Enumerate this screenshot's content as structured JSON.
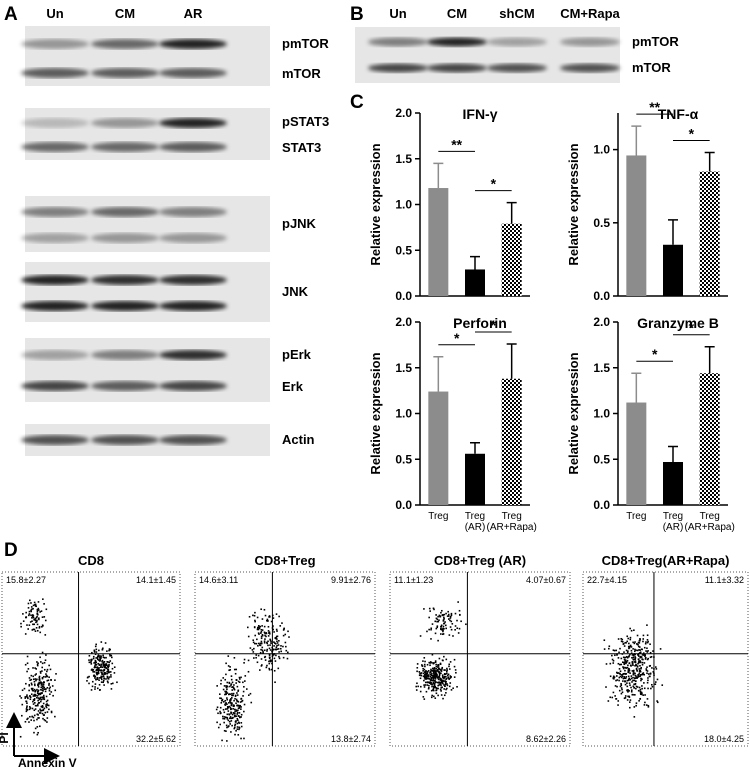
{
  "panel_letters": [
    "A",
    "B",
    "C",
    "D"
  ],
  "panel_a": {
    "lanes": [
      "Un",
      "CM",
      "AR"
    ],
    "blots": [
      "pmTOR",
      "mTOR",
      "pSTAT3",
      "STAT3",
      "pJNK",
      "JNK",
      "pErk",
      "Erk",
      "Actin"
    ]
  },
  "panel_b": {
    "lanes": [
      "Un",
      "CM",
      "shCM",
      "CM+Rapa"
    ],
    "blots": [
      "pmTOR",
      "mTOR"
    ]
  },
  "chart_data": [
    {
      "type": "bar",
      "title": "IFN-γ",
      "y_label": "Relative expression",
      "values": [
        1.18,
        0.29,
        0.79
      ],
      "errors": [
        0.27,
        0.14,
        0.23
      ],
      "colors": [
        "#8c8c8c",
        "#000000",
        "hatch"
      ],
      "annotations": [
        "**",
        "*"
      ],
      "ylim": [
        0,
        2
      ],
      "yticks": [
        {
          "value": 0,
          "label": "0.0"
        },
        0.5,
        {
          "value": 1,
          "label": "1.0"
        },
        1.5,
        {
          "value": 2,
          "label": "2.0"
        }
      ]
    },
    {
      "type": "bar",
      "title": "TNF-α",
      "y_label": "Relative expression",
      "values": [
        0.96,
        0.35,
        0.85
      ],
      "errors": [
        0.2,
        0.17,
        0.13
      ],
      "colors": [
        "#8c8c8c",
        "#000000",
        "hatch"
      ],
      "annotations": [
        "**",
        "*"
      ],
      "ylim": [
        0,
        1.25
      ],
      "yticks": [
        {
          "value": 0,
          "label": "0.0"
        },
        0.5,
        {
          "value": 1,
          "label": "1.0"
        }
      ]
    },
    {
      "type": "bar",
      "title": "Perforin",
      "y_label": "Relative expression",
      "categories": [
        "Treg",
        "Treg (AR)",
        "Treg (AR+Rapa)"
      ],
      "values": [
        1.24,
        0.56,
        1.38
      ],
      "errors": [
        0.38,
        0.12,
        0.38
      ],
      "colors": [
        "#8c8c8c",
        "#000000",
        "hatch"
      ],
      "annotations": [
        "*",
        "*"
      ],
      "ylim": [
        0,
        2
      ],
      "yticks": [
        {
          "value": 0,
          "label": "0.0"
        },
        0.5,
        {
          "value": 1,
          "label": "1.0"
        },
        1.5,
        {
          "value": 2,
          "label": "2.0"
        }
      ]
    },
    {
      "type": "bar",
      "title": "Granzyme B",
      "y_label": "Relative expression",
      "categories": [
        "Treg",
        "Treg (AR)",
        "Treg (AR+Rapa)"
      ],
      "values": [
        1.12,
        0.47,
        1.44
      ],
      "errors": [
        0.32,
        0.17,
        0.29
      ],
      "colors": [
        "#8c8c8c",
        "#000000",
        "hatch"
      ],
      "annotations": [
        "*",
        "*"
      ],
      "ylim": [
        0,
        2
      ],
      "yticks": [
        {
          "value": 0,
          "label": "0.0"
        },
        0.5,
        {
          "value": 1,
          "label": "1.0"
        },
        1.5,
        {
          "value": 2,
          "label": "2.0"
        }
      ]
    }
  ],
  "panel_d": {
    "y_axis": "PI",
    "x_axis": "Annexin V",
    "plots": [
      {
        "title": "CD8",
        "upper_left": "15.8±2.27",
        "upper_right": "14.1±1.45",
        "lower_right": "32.2±5.62"
      },
      {
        "title": "CD8+Treg",
        "upper_left": "14.6±3.11",
        "upper_right": "9.91±2.76",
        "lower_right": "13.8±2.74"
      },
      {
        "title": "CD8+Treg (AR)",
        "upper_left": "11.1±1.23",
        "upper_right": "4.07±0.67",
        "lower_right": "8.62±2.26"
      },
      {
        "title": "CD8+Treg(AR+Rapa)",
        "upper_left": "22.7±4.15",
        "upper_right": "11.1±3.32",
        "lower_right": "18.0±4.25"
      }
    ]
  }
}
